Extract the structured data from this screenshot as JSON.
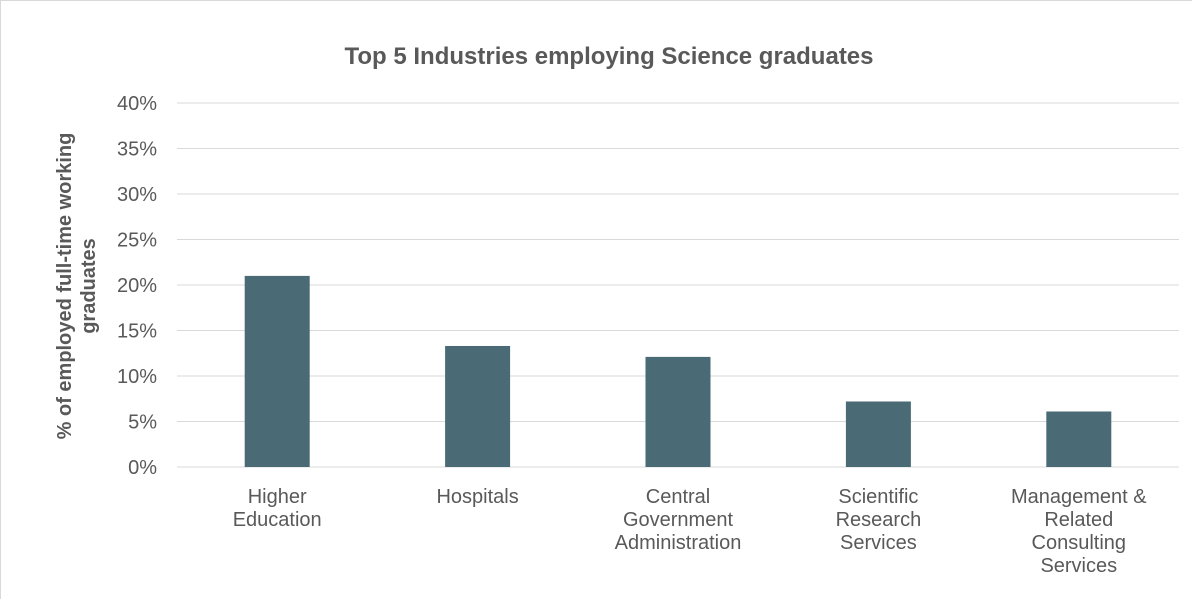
{
  "chart_data": {
    "type": "bar",
    "title": "Top 5 Industries employing Science graduates",
    "xlabel": "",
    "ylabel": "% of employed full-time working graduates",
    "ylim": [
      0,
      40
    ],
    "yticks": [
      "0%",
      "5%",
      "10%",
      "15%",
      "20%",
      "25%",
      "30%",
      "35%",
      "40%"
    ],
    "categories": [
      "Higher Education",
      "Hospitals",
      "Central Government Administration",
      "Scientific Research Services",
      "Management & Related Consulting Services"
    ],
    "values": [
      21.0,
      13.3,
      12.1,
      7.2,
      6.1
    ],
    "bar_color": "#4a6b76",
    "grid": true,
    "legend": "none"
  }
}
